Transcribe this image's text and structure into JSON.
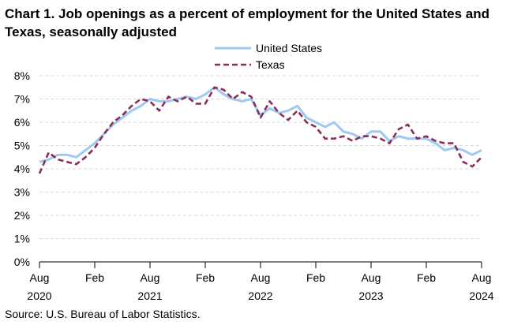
{
  "chart_data": {
    "type": "line",
    "title": "Chart 1. Job openings as a percent of employment for the United States and Texas, seasonally adjusted",
    "xlabel": "",
    "ylabel": "",
    "ylim": [
      0,
      8
    ],
    "y_ticks": [
      "0%",
      "1%",
      "2%",
      "3%",
      "4%",
      "5%",
      "6%",
      "7%",
      "8%"
    ],
    "x_ticks": [
      {
        "month": "Aug",
        "year": "2020",
        "index": 0
      },
      {
        "month": "Feb",
        "year": "",
        "index": 6
      },
      {
        "month": "Aug",
        "year": "2021",
        "index": 12
      },
      {
        "month": "Feb",
        "year": "",
        "index": 18
      },
      {
        "month": "Aug",
        "year": "2022",
        "index": 24
      },
      {
        "month": "Feb",
        "year": "",
        "index": 30
      },
      {
        "month": "Aug",
        "year": "2023",
        "index": 36
      },
      {
        "month": "Feb",
        "year": "",
        "index": 42
      },
      {
        "month": "Aug",
        "year": "2024",
        "index": 48
      }
    ],
    "grid": true,
    "legend_position": "top-right",
    "series": [
      {
        "name": "United States",
        "color": "#9ec9f2",
        "style": "solid",
        "values": [
          4.3,
          4.4,
          4.6,
          4.6,
          4.5,
          4.8,
          5.1,
          5.5,
          5.9,
          6.2,
          6.5,
          6.7,
          7.0,
          6.9,
          6.9,
          7.0,
          7.1,
          7.0,
          7.2,
          7.5,
          7.2,
          7.0,
          6.9,
          7.0,
          6.3,
          6.6,
          6.4,
          6.5,
          6.7,
          6.2,
          6.0,
          5.8,
          6.0,
          5.6,
          5.5,
          5.3,
          5.6,
          5.6,
          5.2,
          5.4,
          5.3,
          5.3,
          5.3,
          5.1,
          4.8,
          4.9,
          4.8,
          4.6,
          4.8
        ]
      },
      {
        "name": "Texas",
        "color": "#8a2e5c",
        "style": "dashed",
        "values": [
          3.8,
          4.7,
          4.4,
          4.3,
          4.2,
          4.5,
          4.9,
          5.5,
          6.0,
          6.3,
          6.7,
          7.0,
          6.9,
          6.5,
          7.1,
          6.9,
          7.1,
          6.8,
          6.8,
          7.5,
          7.4,
          7.0,
          7.3,
          7.1,
          6.2,
          6.9,
          6.4,
          6.1,
          6.5,
          6.0,
          5.8,
          5.3,
          5.3,
          5.4,
          5.2,
          5.4,
          5.4,
          5.3,
          5.1,
          5.7,
          5.9,
          5.3,
          5.4,
          5.2,
          5.1,
          5.1,
          4.3,
          4.1,
          4.5
        ]
      }
    ]
  },
  "source": "Source: U.S. Bureau of Labor Statistics."
}
